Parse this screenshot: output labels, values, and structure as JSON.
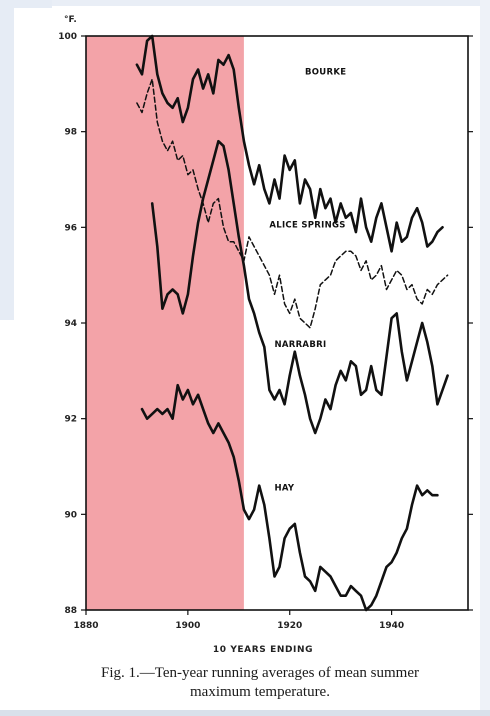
{
  "chart_data": {
    "type": "line",
    "x_unit_label": "°F.",
    "xlabel": "10 YEARS ENDING",
    "xlim": [
      1880,
      1955
    ],
    "ylim": [
      88,
      100
    ],
    "x_ticks": [
      1880,
      1900,
      1920,
      1940
    ],
    "y_ticks": [
      88,
      90,
      92,
      94,
      96,
      98,
      100
    ],
    "grid": false,
    "highlight_range": [
      1880,
      1911
    ],
    "highlight_color": "#f3a3a8",
    "line_color": "#111111",
    "series": [
      {
        "name": "BOURKE",
        "style": "solid",
        "points": [
          [
            1890,
            99.4
          ],
          [
            1891,
            99.2
          ],
          [
            1892,
            99.9
          ],
          [
            1893,
            100.0
          ],
          [
            1894,
            99.2
          ],
          [
            1895,
            98.8
          ],
          [
            1896,
            98.6
          ],
          [
            1897,
            98.5
          ],
          [
            1898,
            98.7
          ],
          [
            1899,
            98.2
          ],
          [
            1900,
            98.5
          ],
          [
            1901,
            99.1
          ],
          [
            1902,
            99.3
          ],
          [
            1903,
            98.9
          ],
          [
            1904,
            99.2
          ],
          [
            1905,
            98.8
          ],
          [
            1906,
            99.5
          ],
          [
            1907,
            99.4
          ],
          [
            1908,
            99.6
          ],
          [
            1909,
            99.3
          ],
          [
            1910,
            98.5
          ],
          [
            1911,
            97.8
          ],
          [
            1912,
            97.3
          ],
          [
            1913,
            96.9
          ],
          [
            1914,
            97.3
          ],
          [
            1915,
            96.8
          ],
          [
            1916,
            96.5
          ],
          [
            1917,
            97.0
          ],
          [
            1918,
            96.6
          ],
          [
            1919,
            97.5
          ],
          [
            1920,
            97.2
          ],
          [
            1921,
            97.4
          ],
          [
            1922,
            96.5
          ],
          [
            1923,
            97.0
          ],
          [
            1924,
            96.8
          ],
          [
            1925,
            96.2
          ],
          [
            1926,
            96.8
          ],
          [
            1927,
            96.4
          ],
          [
            1928,
            96.6
          ],
          [
            1929,
            96.1
          ],
          [
            1930,
            96.5
          ],
          [
            1931,
            96.2
          ],
          [
            1932,
            96.3
          ],
          [
            1933,
            95.9
          ],
          [
            1934,
            96.6
          ],
          [
            1935,
            96.0
          ],
          [
            1936,
            95.7
          ],
          [
            1937,
            96.2
          ],
          [
            1938,
            96.5
          ],
          [
            1939,
            96.0
          ],
          [
            1940,
            95.5
          ],
          [
            1941,
            96.1
          ],
          [
            1942,
            95.7
          ],
          [
            1943,
            95.8
          ],
          [
            1944,
            96.2
          ],
          [
            1945,
            96.4
          ],
          [
            1946,
            96.1
          ],
          [
            1947,
            95.6
          ],
          [
            1948,
            95.7
          ],
          [
            1949,
            95.9
          ],
          [
            1950,
            96.0
          ]
        ]
      },
      {
        "name": "ALICE SPRINGS",
        "style": "dashed",
        "points": [
          [
            1890,
            98.6
          ],
          [
            1891,
            98.4
          ],
          [
            1892,
            98.8
          ],
          [
            1893,
            99.1
          ],
          [
            1894,
            98.2
          ],
          [
            1895,
            97.8
          ],
          [
            1896,
            97.6
          ],
          [
            1897,
            97.8
          ],
          [
            1898,
            97.4
          ],
          [
            1899,
            97.5
          ],
          [
            1900,
            97.1
          ],
          [
            1901,
            97.2
          ],
          [
            1902,
            96.8
          ],
          [
            1903,
            96.5
          ],
          [
            1904,
            96.1
          ],
          [
            1905,
            96.5
          ],
          [
            1906,
            96.6
          ],
          [
            1907,
            96.0
          ],
          [
            1908,
            95.7
          ],
          [
            1909,
            95.7
          ],
          [
            1910,
            95.5
          ],
          [
            1911,
            95.3
          ],
          [
            1912,
            95.8
          ],
          [
            1913,
            95.6
          ],
          [
            1914,
            95.4
          ],
          [
            1915,
            95.2
          ],
          [
            1916,
            95.0
          ],
          [
            1917,
            94.6
          ],
          [
            1918,
            95.0
          ],
          [
            1919,
            94.4
          ],
          [
            1920,
            94.2
          ],
          [
            1921,
            94.5
          ],
          [
            1922,
            94.1
          ],
          [
            1923,
            94.0
          ],
          [
            1924,
            93.9
          ],
          [
            1925,
            94.3
          ],
          [
            1926,
            94.8
          ],
          [
            1927,
            94.9
          ],
          [
            1928,
            95.0
          ],
          [
            1929,
            95.3
          ],
          [
            1930,
            95.4
          ],
          [
            1931,
            95.5
          ],
          [
            1932,
            95.5
          ],
          [
            1933,
            95.4
          ],
          [
            1934,
            95.1
          ],
          [
            1935,
            95.3
          ],
          [
            1936,
            94.9
          ],
          [
            1937,
            95.0
          ],
          [
            1938,
            95.2
          ],
          [
            1939,
            94.7
          ],
          [
            1940,
            94.9
          ],
          [
            1941,
            95.1
          ],
          [
            1942,
            95.0
          ],
          [
            1943,
            94.7
          ],
          [
            1944,
            94.8
          ],
          [
            1945,
            94.5
          ],
          [
            1946,
            94.4
          ],
          [
            1947,
            94.7
          ],
          [
            1948,
            94.6
          ],
          [
            1949,
            94.8
          ],
          [
            1950,
            94.9
          ],
          [
            1951,
            95.0
          ]
        ]
      },
      {
        "name": "NARRABRI",
        "style": "solid",
        "points": [
          [
            1893,
            96.5
          ],
          [
            1894,
            95.6
          ],
          [
            1895,
            94.3
          ],
          [
            1896,
            94.6
          ],
          [
            1897,
            94.7
          ],
          [
            1898,
            94.6
          ],
          [
            1899,
            94.2
          ],
          [
            1900,
            94.6
          ],
          [
            1901,
            95.4
          ],
          [
            1902,
            96.1
          ],
          [
            1903,
            96.6
          ],
          [
            1904,
            97.0
          ],
          [
            1905,
            97.4
          ],
          [
            1906,
            97.8
          ],
          [
            1907,
            97.7
          ],
          [
            1908,
            97.2
          ],
          [
            1909,
            96.5
          ],
          [
            1910,
            95.8
          ],
          [
            1911,
            95.2
          ],
          [
            1912,
            94.5
          ],
          [
            1913,
            94.2
          ],
          [
            1914,
            93.8
          ],
          [
            1915,
            93.5
          ],
          [
            1916,
            92.6
          ],
          [
            1917,
            92.4
          ],
          [
            1918,
            92.6
          ],
          [
            1919,
            92.3
          ],
          [
            1920,
            92.9
          ],
          [
            1921,
            93.4
          ],
          [
            1922,
            92.9
          ],
          [
            1923,
            92.5
          ],
          [
            1924,
            92.0
          ],
          [
            1925,
            91.7
          ],
          [
            1926,
            92.0
          ],
          [
            1927,
            92.4
          ],
          [
            1928,
            92.2
          ],
          [
            1929,
            92.7
          ],
          [
            1930,
            93.0
          ],
          [
            1931,
            92.8
          ],
          [
            1932,
            93.2
          ],
          [
            1933,
            93.1
          ],
          [
            1934,
            92.5
          ],
          [
            1935,
            92.6
          ],
          [
            1936,
            93.1
          ],
          [
            1937,
            92.6
          ],
          [
            1938,
            92.5
          ],
          [
            1939,
            93.3
          ],
          [
            1940,
            94.1
          ],
          [
            1941,
            94.2
          ],
          [
            1942,
            93.4
          ],
          [
            1943,
            92.8
          ],
          [
            1944,
            93.2
          ],
          [
            1945,
            93.6
          ],
          [
            1946,
            94.0
          ],
          [
            1947,
            93.6
          ],
          [
            1948,
            93.1
          ],
          [
            1949,
            92.3
          ],
          [
            1950,
            92.6
          ],
          [
            1951,
            92.9
          ]
        ]
      },
      {
        "name": "HAY",
        "style": "solid",
        "points": [
          [
            1891,
            92.2
          ],
          [
            1892,
            92.0
          ],
          [
            1893,
            92.1
          ],
          [
            1894,
            92.2
          ],
          [
            1895,
            92.1
          ],
          [
            1896,
            92.2
          ],
          [
            1897,
            92.0
          ],
          [
            1898,
            92.7
          ],
          [
            1899,
            92.4
          ],
          [
            1900,
            92.6
          ],
          [
            1901,
            92.3
          ],
          [
            1902,
            92.5
          ],
          [
            1903,
            92.2
          ],
          [
            1904,
            91.9
          ],
          [
            1905,
            91.7
          ],
          [
            1906,
            91.9
          ],
          [
            1907,
            91.7
          ],
          [
            1908,
            91.5
          ],
          [
            1909,
            91.2
          ],
          [
            1910,
            90.7
          ],
          [
            1911,
            90.1
          ],
          [
            1912,
            89.9
          ],
          [
            1913,
            90.1
          ],
          [
            1914,
            90.6
          ],
          [
            1915,
            90.2
          ],
          [
            1916,
            89.5
          ],
          [
            1917,
            88.7
          ],
          [
            1918,
            88.9
          ],
          [
            1919,
            89.5
          ],
          [
            1920,
            89.7
          ],
          [
            1921,
            89.8
          ],
          [
            1922,
            89.2
          ],
          [
            1923,
            88.7
          ],
          [
            1924,
            88.6
          ],
          [
            1925,
            88.4
          ],
          [
            1926,
            88.9
          ],
          [
            1927,
            88.8
          ],
          [
            1928,
            88.7
          ],
          [
            1929,
            88.5
          ],
          [
            1930,
            88.3
          ],
          [
            1931,
            88.3
          ],
          [
            1932,
            88.5
          ],
          [
            1933,
            88.4
          ],
          [
            1934,
            88.3
          ],
          [
            1935,
            88.0
          ],
          [
            1936,
            88.1
          ],
          [
            1937,
            88.3
          ],
          [
            1938,
            88.6
          ],
          [
            1939,
            88.9
          ],
          [
            1940,
            89.0
          ],
          [
            1941,
            89.2
          ],
          [
            1942,
            89.5
          ],
          [
            1943,
            89.7
          ],
          [
            1944,
            90.2
          ],
          [
            1945,
            90.6
          ],
          [
            1946,
            90.4
          ],
          [
            1947,
            90.5
          ],
          [
            1948,
            90.4
          ],
          [
            1949,
            90.4
          ]
        ]
      }
    ],
    "series_labels": [
      {
        "name": "BOURKE",
        "at": [
          1923,
          99.2
        ]
      },
      {
        "name": "ALICE SPRINGS",
        "at": [
          1916,
          96.0
        ]
      },
      {
        "name": "NARRABRI",
        "at": [
          1917,
          93.5
        ]
      },
      {
        "name": "HAY",
        "at": [
          1917,
          90.5
        ]
      }
    ]
  },
  "caption": {
    "line1": "Fig. 1.—Ten-year running averages of mean summer",
    "line2": "maximum temperature."
  }
}
